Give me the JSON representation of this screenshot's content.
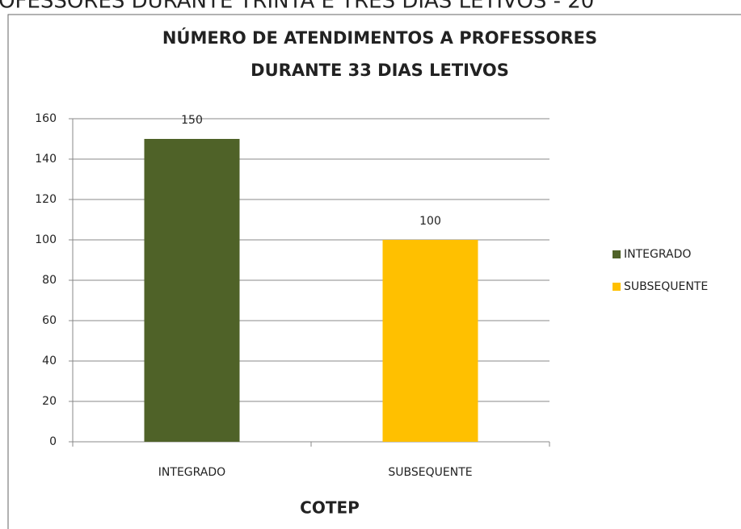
{
  "page_heading": "ROFESSORES DURANTE TRINTA E TRÊS DIAS LETIVOS - 20",
  "chart_data": {
    "type": "bar",
    "title": [
      "NÚMERO DE ATENDIMENTOS  A PROFESSORES",
      "DURANTE 33 DIAS LETIVOS"
    ],
    "x_label": "COTEP",
    "categories": [
      "INTEGRADO",
      "SUBSEQUENTE"
    ],
    "values": [
      150,
      100
    ],
    "colors": [
      "#4f6228",
      "#ffc000"
    ],
    "ylim": [
      0,
      160
    ],
    "yticks": [
      0,
      20,
      40,
      60,
      80,
      100,
      120,
      140,
      160
    ],
    "grid": true,
    "legend": "right"
  }
}
